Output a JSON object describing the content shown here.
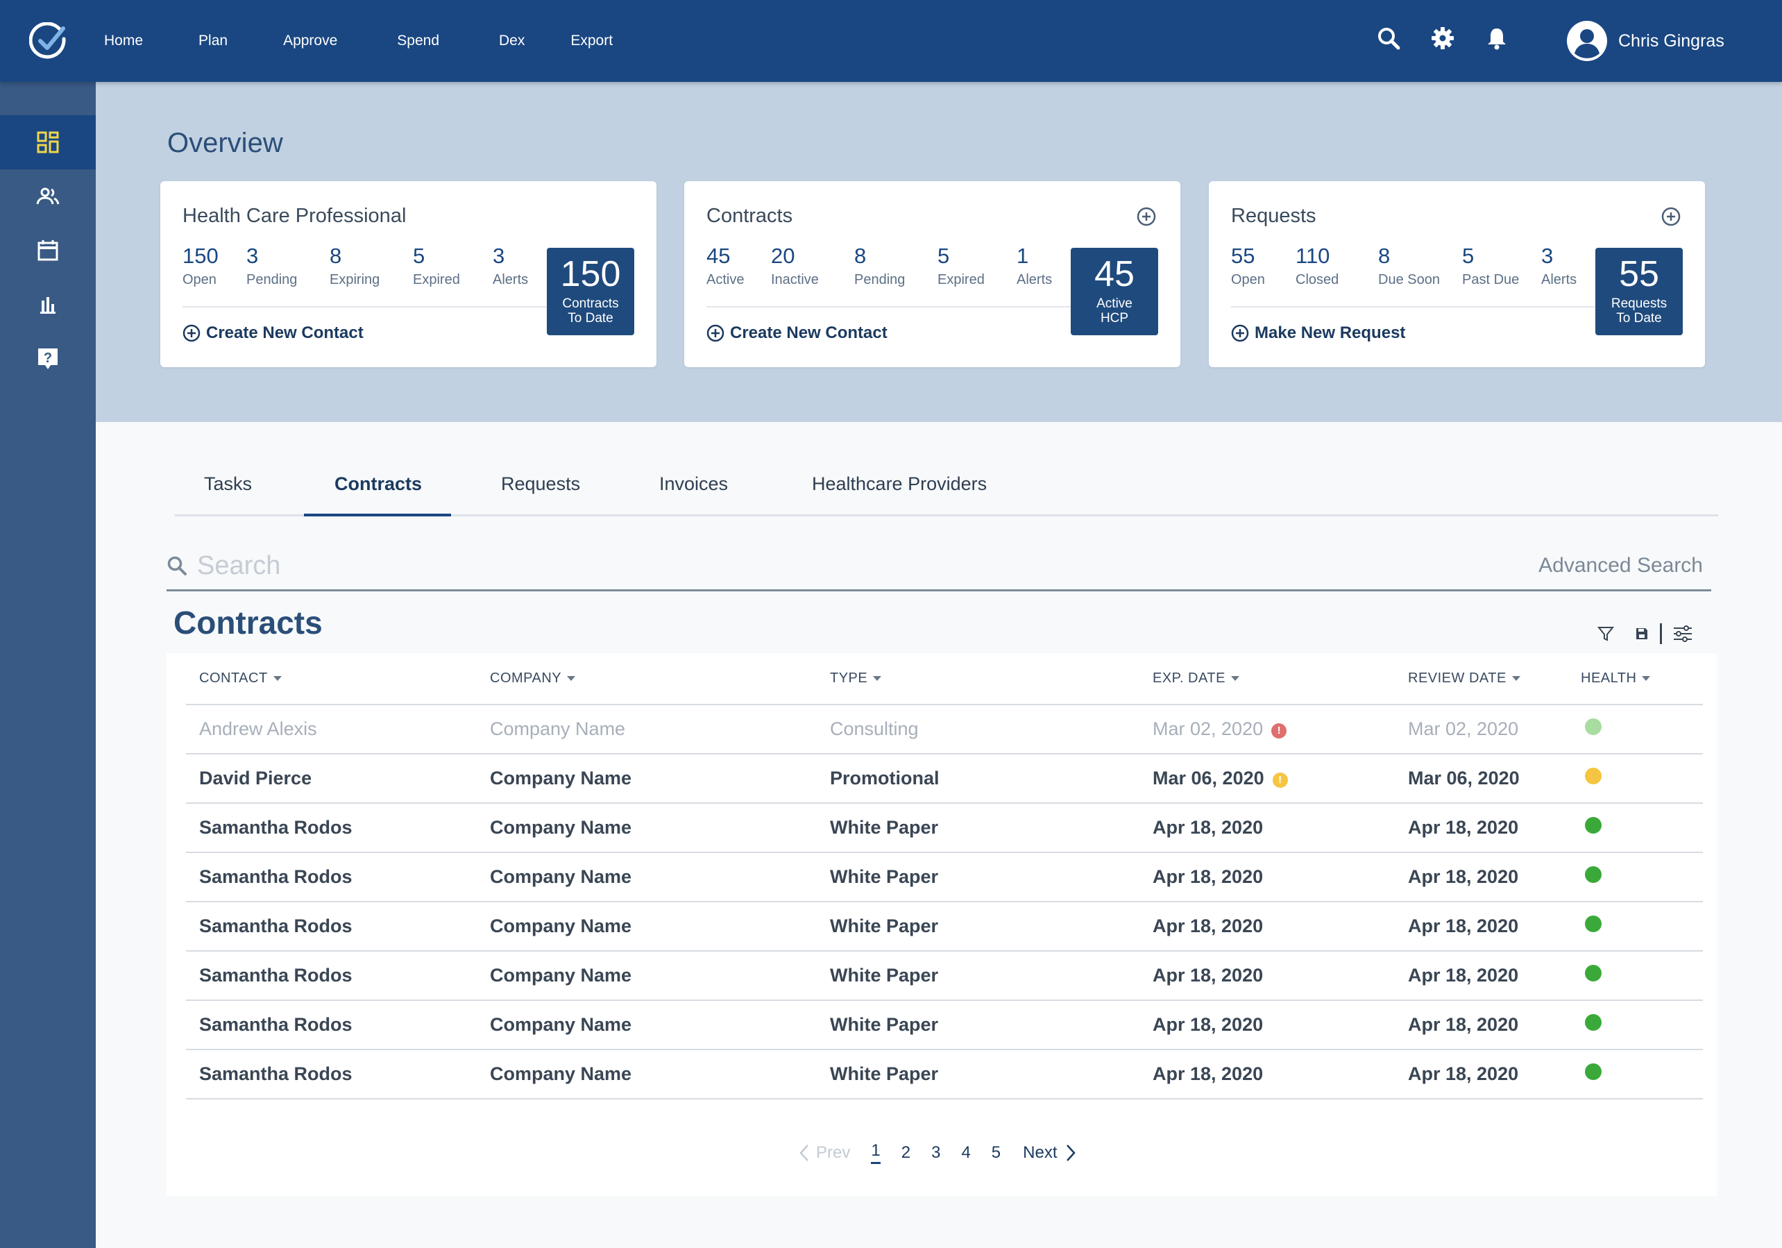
{
  "topnav": {
    "links": [
      "Home",
      "Plan",
      "Approve",
      "Spend",
      "Dex",
      "Export"
    ],
    "user_name": "Chris Gingras"
  },
  "overview": {
    "title": "Overview",
    "cards": [
      {
        "title": "Health Care Professional",
        "stats": [
          {
            "num": "150",
            "label": "Open"
          },
          {
            "num": "3",
            "label": "Pending"
          },
          {
            "num": "8",
            "label": "Expiring"
          },
          {
            "num": "5",
            "label": "Expired"
          },
          {
            "num": "3",
            "label": "Alerts"
          }
        ],
        "big_num": "150",
        "big_label1": "Contracts",
        "big_label2": "To Date",
        "action": "Create New Contact"
      },
      {
        "title": "Contracts",
        "stats": [
          {
            "num": "45",
            "label": "Active"
          },
          {
            "num": "20",
            "label": "Inactive"
          },
          {
            "num": "8",
            "label": "Pending"
          },
          {
            "num": "5",
            "label": "Expired"
          },
          {
            "num": "1",
            "label": "Alerts"
          }
        ],
        "big_num": "45",
        "big_label1": "Active",
        "big_label2": "HCP",
        "action": "Create New Contact"
      },
      {
        "title": "Requests",
        "stats": [
          {
            "num": "55",
            "label": "Open"
          },
          {
            "num": "110",
            "label": "Closed"
          },
          {
            "num": "8",
            "label": "Due Soon"
          },
          {
            "num": "5",
            "label": "Past Due"
          },
          {
            "num": "3",
            "label": "Alerts"
          }
        ],
        "big_num": "55",
        "big_label1": "Requests",
        "big_label2": "To Date",
        "action": "Make New Request"
      }
    ]
  },
  "tabs": [
    "Tasks",
    "Contracts",
    "Requests",
    "Invoices",
    "Healthcare Providers"
  ],
  "search": {
    "placeholder": "Search",
    "advanced": "Advanced Search"
  },
  "contracts": {
    "title": "Contracts",
    "columns": [
      "CONTACT",
      "COMPANY",
      "TYPE",
      "EXP. DATE",
      "REVIEW DATE",
      "HEALTH"
    ],
    "rows": [
      {
        "contact": "Andrew Alexis",
        "company": "Company Name",
        "type": "Consulting",
        "exp": "Mar 02, 2020",
        "review": "Mar 02, 2020",
        "health": "#a8dca0",
        "alert": "#e06f6f"
      },
      {
        "contact": "David Pierce",
        "company": "Company Name",
        "type": "Promotional",
        "exp": "Mar 06, 2020",
        "review": "Mar 06, 2020",
        "health": "#f5c542",
        "alert": "#f5c542"
      },
      {
        "contact": "Samantha Rodos",
        "company": "Company Name",
        "type": "White Paper",
        "exp": "Apr 18, 2020",
        "review": "Apr 18, 2020",
        "health": "#3aa93a",
        "alert": ""
      },
      {
        "contact": "Samantha Rodos",
        "company": "Company Name",
        "type": "White Paper",
        "exp": "Apr 18, 2020",
        "review": "Apr 18, 2020",
        "health": "#3aa93a",
        "alert": ""
      },
      {
        "contact": "Samantha Rodos",
        "company": "Company Name",
        "type": "White Paper",
        "exp": "Apr 18, 2020",
        "review": "Apr 18, 2020",
        "health": "#3aa93a",
        "alert": ""
      },
      {
        "contact": "Samantha Rodos",
        "company": "Company Name",
        "type": "White Paper",
        "exp": "Apr 18, 2020",
        "review": "Apr 18, 2020",
        "health": "#3aa93a",
        "alert": ""
      },
      {
        "contact": "Samantha Rodos",
        "company": "Company Name",
        "type": "White Paper",
        "exp": "Apr 18, 2020",
        "review": "Apr 18, 2020",
        "health": "#3aa93a",
        "alert": ""
      },
      {
        "contact": "Samantha Rodos",
        "company": "Company Name",
        "type": "White Paper",
        "exp": "Apr 18, 2020",
        "review": "Apr 18, 2020",
        "health": "#3aa93a",
        "alert": ""
      }
    ]
  },
  "pager": {
    "prev": "Prev",
    "pages": [
      "1",
      "2",
      "3",
      "4",
      "5"
    ],
    "next": "Next"
  },
  "colors": {
    "nav": "#1a4782",
    "sidebar": "#385a84",
    "band": "#c1d1e2",
    "accent_icon": "#f0d64a"
  }
}
